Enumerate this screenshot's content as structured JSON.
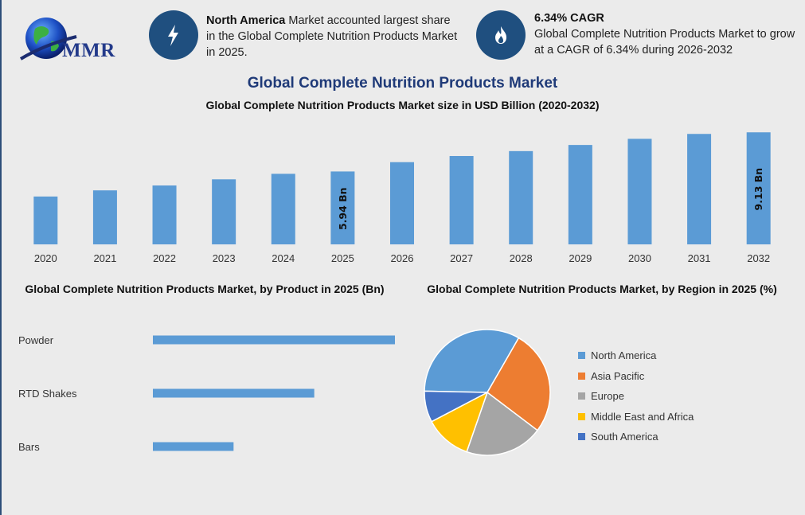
{
  "brand": {
    "logo_text": "MMR"
  },
  "info_cards": [
    {
      "icon": "lightning-icon",
      "bold": "North America",
      "text": " Market accounted largest share in the Global Complete Nutrition Products Market in 2025."
    },
    {
      "icon": "flame-icon",
      "bold": "6.34% CAGR",
      "text": "Global Complete Nutrition Products Market to grow at a CAGR of 6.34% during 2026-2032"
    }
  ],
  "header": {
    "title": "Global Complete Nutrition Products Market",
    "subtitle": "Global Complete Nutrition Products Market size in USD Billion (2020-2032)"
  },
  "sections": {
    "product_title": "Global Complete Nutrition Products Market, by Product in 2025 (Bn)",
    "region_title": "Global Complete Nutrition Products Market, by Region in 2025 (%)"
  },
  "colors": {
    "bar": "#5b9bd5",
    "title": "#1f3a78",
    "circle": "#1f4f7f"
  },
  "chart_data": [
    {
      "type": "bar",
      "categories": [
        "2020",
        "2021",
        "2022",
        "2023",
        "2024",
        "2025",
        "2026",
        "2027",
        "2028",
        "2029",
        "2030",
        "2031",
        "2032"
      ],
      "values": [
        3.9,
        4.4,
        4.8,
        5.3,
        5.75,
        5.94,
        6.7,
        7.2,
        7.6,
        8.1,
        8.6,
        9.0,
        9.13
      ],
      "data_labels": {
        "5": "5.94 Bn",
        "12": "9.13 Bn"
      },
      "ylim": [
        0,
        9.6
      ]
    },
    {
      "type": "bar",
      "orientation": "horizontal",
      "categories": [
        "Powder",
        "RTD Shakes",
        "Bars"
      ],
      "values": [
        3.0,
        2.0,
        1.0
      ],
      "xlim": [
        0,
        3.0
      ]
    },
    {
      "type": "pie",
      "labels": [
        "North America",
        "Asia Pacific",
        "Europe",
        "Middle East and Africa",
        "South America"
      ],
      "values": [
        33,
        27,
        20,
        12,
        8
      ],
      "colors": [
        "#5b9bd5",
        "#ed7d31",
        "#a5a5a5",
        "#ffc000",
        "#4472c4"
      ],
      "legend": "right"
    }
  ]
}
